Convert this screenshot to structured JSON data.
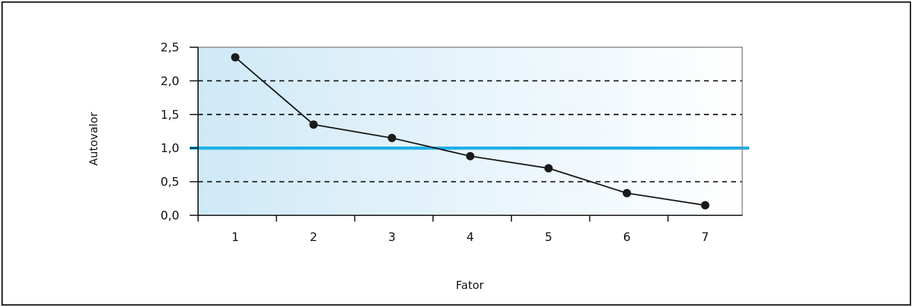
{
  "chart_data": {
    "type": "line",
    "title": "",
    "xlabel": "Fator",
    "ylabel": "Autovalor",
    "categories": [
      "1",
      "2",
      "3",
      "4",
      "5",
      "6",
      "7"
    ],
    "values": [
      2.35,
      1.35,
      1.15,
      0.88,
      0.7,
      0.33,
      0.15
    ],
    "ylim": [
      0,
      2.5
    ],
    "yticks": [
      "0,0",
      "0,5",
      "1,0",
      "1,5",
      "2,0",
      "2,5"
    ],
    "ytick_values": [
      0,
      0.5,
      1.0,
      1.5,
      2.0,
      2.5
    ],
    "dashed_gridlines": [
      0.5,
      1.5,
      2.0
    ],
    "reference_line": {
      "value": 1.0,
      "color": "#1eaee6"
    },
    "grid": true,
    "legend": "none",
    "colors": {
      "series": "#1a1a1a",
      "plot_gradient_start": "#cfe9f7",
      "plot_gradient_end": "#ffffff",
      "plot_border": "#8a8a8a"
    }
  }
}
